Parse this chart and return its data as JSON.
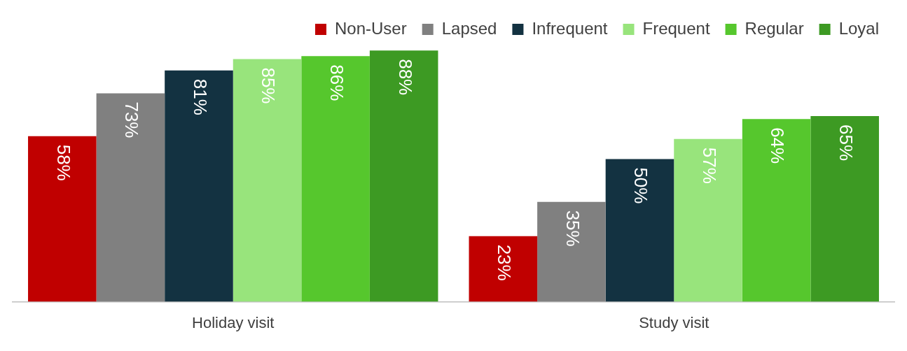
{
  "chart_data": {
    "type": "bar",
    "categories": [
      "Holiday visit",
      "Study visit"
    ],
    "series": [
      {
        "name": "Non-User",
        "color": "#c00000",
        "values": [
          58,
          23
        ],
        "value_labels": [
          "58%",
          "23%"
        ]
      },
      {
        "name": "Lapsed",
        "color": "#808080",
        "values": [
          73,
          35
        ],
        "value_labels": [
          "73%",
          "35%"
        ]
      },
      {
        "name": "Infrequent",
        "color": "#133241",
        "values": [
          81,
          50
        ],
        "value_labels": [
          "81%",
          "50%"
        ]
      },
      {
        "name": "Frequent",
        "color": "#98e47c",
        "values": [
          85,
          57
        ],
        "value_labels": [
          "85%",
          "57%"
        ]
      },
      {
        "name": "Regular",
        "color": "#56c72d",
        "values": [
          86,
          64
        ],
        "value_labels": [
          "86%",
          "64%"
        ]
      },
      {
        "name": "Loyal",
        "color": "#3d9a23",
        "values": [
          88,
          65
        ],
        "value_labels": [
          "88%",
          "65%"
        ]
      }
    ],
    "legend": "top",
    "grid": false
  }
}
